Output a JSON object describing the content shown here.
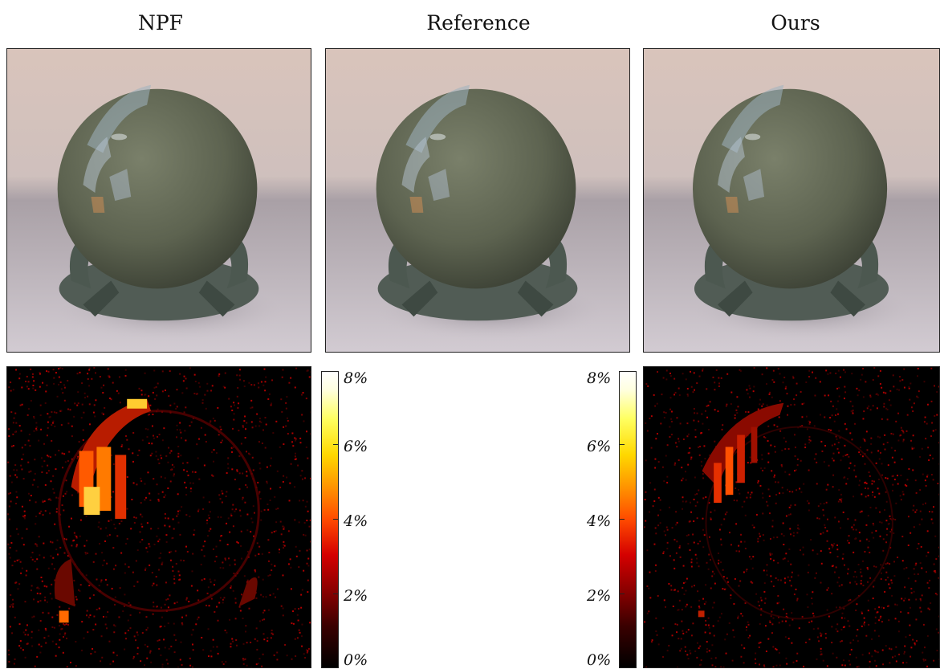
{
  "columns": {
    "left": "NPF",
    "center": "Reference",
    "right": "Ours"
  },
  "colorbar_ticks": [
    "8%",
    "6%",
    "4%",
    "2%",
    "0%"
  ],
  "colors": {
    "background": "#d8c8c0",
    "floor": "#ccc6cc",
    "sphere": "#5d6350",
    "stand": "#4c5850",
    "heat_low": "#000000",
    "heat_high": "#ffffff"
  }
}
